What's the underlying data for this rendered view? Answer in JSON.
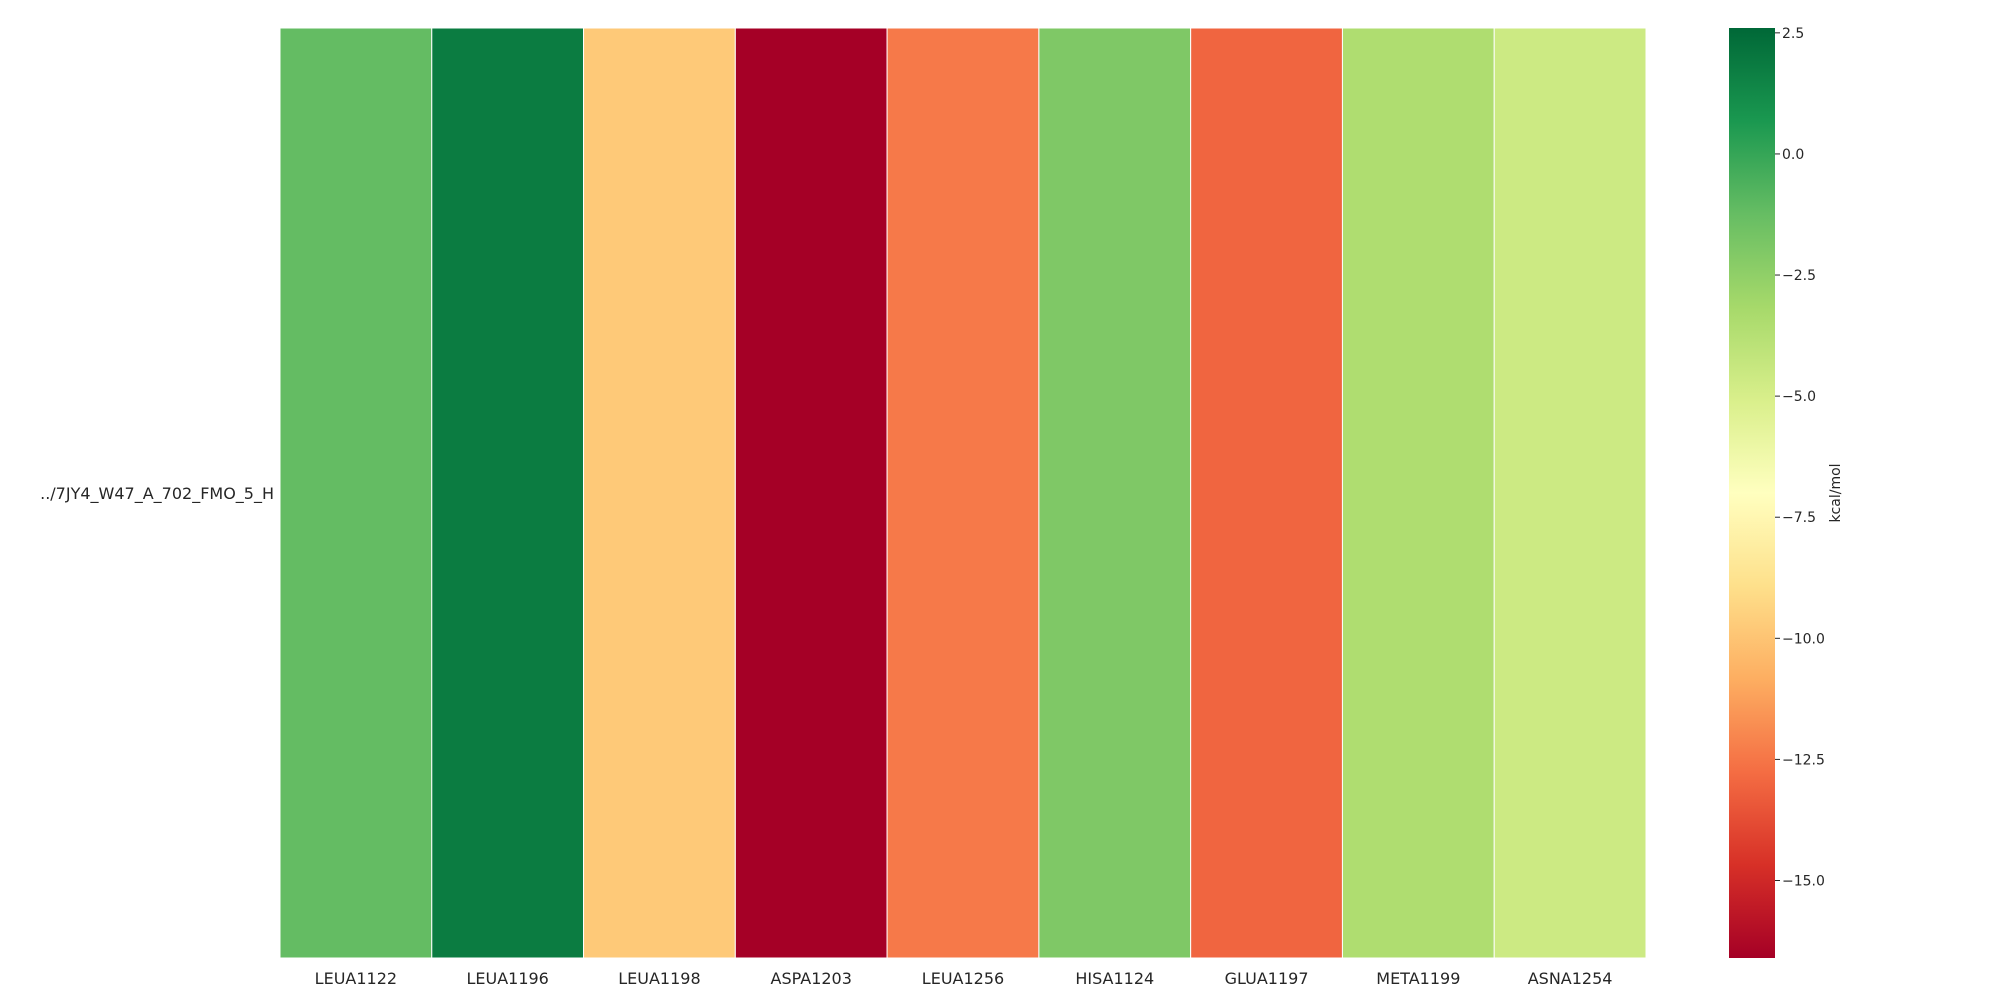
{
  "chart_data": {
    "type": "heatmap",
    "rows": [
      "../7JY4_W47_A_702_FMO_5_H"
    ],
    "columns": [
      "LEUA1122",
      "LEUA1196",
      "LEUA1198",
      "ASPA1203",
      "LEUA1256",
      "HISA1124",
      "GLUA1197",
      "META1199",
      "ASNA1254"
    ],
    "values": [
      [
        -1.2,
        1.8,
        -9.8,
        -16.6,
        -12.4,
        -2.0,
        -13.0,
        -3.5,
        -4.6
      ]
    ],
    "colormap": "RdYlGn",
    "vmin": -16.6,
    "vmax": 2.6,
    "colorbar": {
      "label": "kcal/mol",
      "ticks": [
        2.5,
        0.0,
        -2.5,
        -5.0,
        -7.5,
        -10.0,
        -12.5,
        -15.0
      ],
      "tick_labels": [
        "2.5",
        "0.0",
        "−2.5",
        "−5.0",
        "−7.5",
        "−10.0",
        "−12.5",
        "−15.0"
      ]
    }
  }
}
